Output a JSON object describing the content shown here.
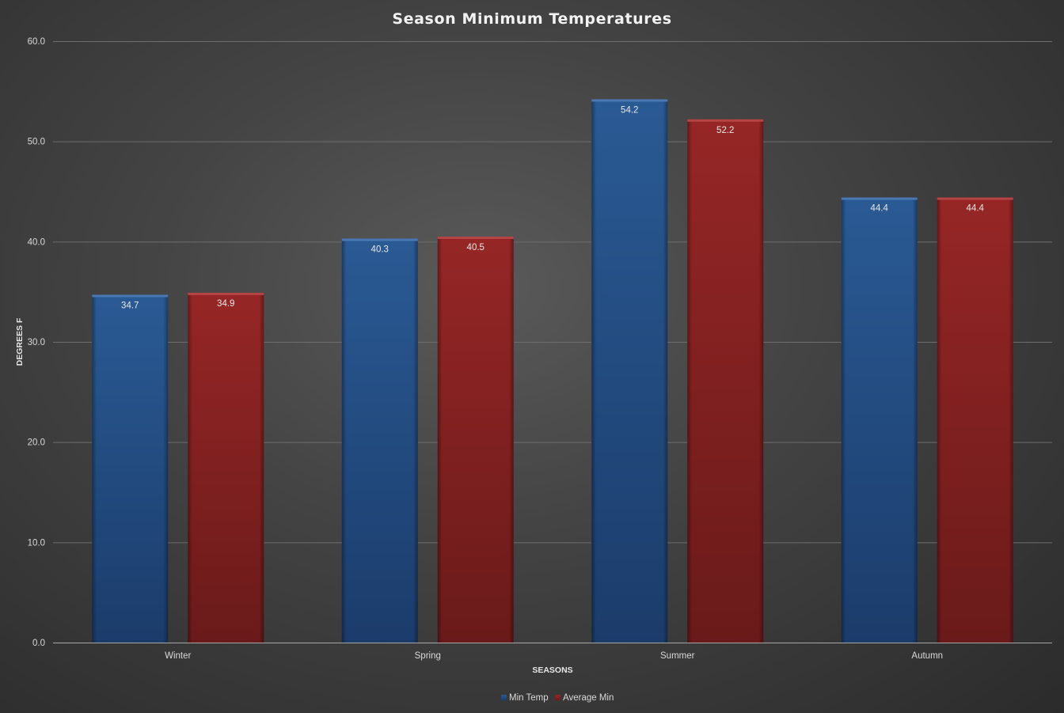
{
  "chart_data": {
    "type": "bar",
    "title": "Season Minimum Temperatures",
    "xlabel": "SEASONS",
    "ylabel": "DEGREES F",
    "categories": [
      "Winter",
      "Spring",
      "Summer",
      "Autumn"
    ],
    "series": [
      {
        "name": "Min Temp",
        "values": [
          34.7,
          40.3,
          54.2,
          44.4
        ],
        "color": "#234f86"
      },
      {
        "name": "Average Min",
        "values": [
          34.9,
          40.5,
          52.2,
          44.4
        ],
        "color": "#8b2222"
      }
    ],
    "ylim": [
      0,
      60
    ],
    "yticks": [
      "0.0",
      "10.0",
      "20.0",
      "30.0",
      "40.0",
      "50.0",
      "60.0"
    ],
    "data_labels": [
      [
        "34.7",
        "40.3",
        "54.2",
        "44.4"
      ],
      [
        "34.9",
        "40.5",
        "52.2",
        "44.4"
      ]
    ],
    "grid": true,
    "legend_position": "bottom"
  }
}
